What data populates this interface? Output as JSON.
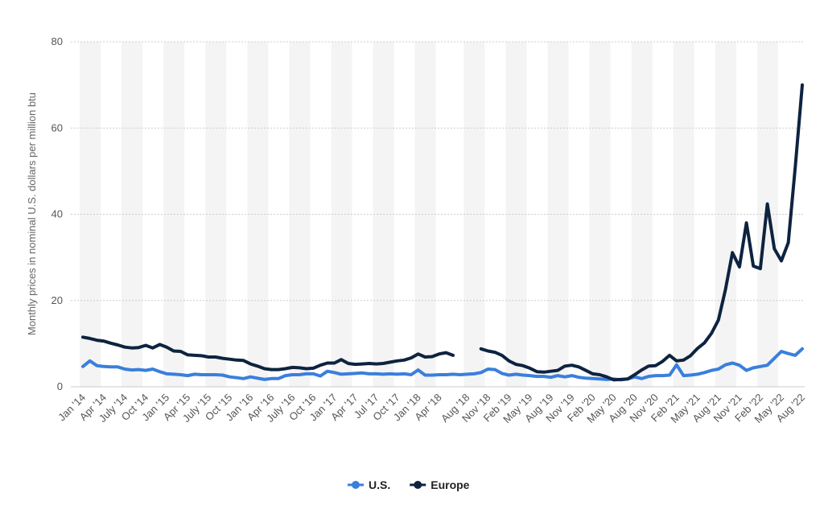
{
  "chart_data": {
    "type": "line",
    "y_label": "Monthly prices in nominal U.S. dollars per million btu",
    "categories": [
      "Jan '14",
      null,
      null,
      "Apr '14",
      null,
      null,
      "July '14",
      null,
      null,
      "Oct '14",
      null,
      null,
      "Jan '15",
      null,
      null,
      "Apr '15",
      null,
      null,
      "July '15",
      null,
      null,
      "Oct '15",
      null,
      null,
      "Jan '16",
      null,
      null,
      "Apr '16",
      null,
      null,
      "July '16",
      null,
      null,
      "Oct '16",
      null,
      null,
      "Jan '17",
      null,
      null,
      "Apr '17",
      null,
      null,
      "Jul '17",
      null,
      null,
      "Oct '17",
      null,
      null,
      "Jan '18",
      null,
      null,
      "Apr '18",
      null,
      null,
      null,
      "Aug '18",
      null,
      null,
      "Nov '18",
      null,
      null,
      "Feb '19",
      null,
      null,
      "May '19",
      null,
      null,
      "Aug '19",
      null,
      null,
      "Nov '19",
      null,
      null,
      "Feb '20",
      null,
      null,
      "May '20",
      null,
      null,
      "Aug '20",
      null,
      null,
      "Nov '20",
      null,
      null,
      "Feb '21",
      null,
      null,
      "May '21",
      null,
      null,
      "Aug '21",
      null,
      null,
      "Nov '21",
      null,
      null,
      "Feb '22",
      null,
      null,
      "May '22",
      null,
      null,
      "Aug '22"
    ],
    "series": [
      {
        "name": "U.S.",
        "color": "#3a7fdc",
        "values": [
          4.7,
          6.0,
          4.9,
          4.7,
          4.6,
          4.6,
          4.1,
          3.9,
          4.0,
          3.8,
          4.1,
          3.5,
          3.0,
          2.9,
          2.8,
          2.6,
          2.9,
          2.8,
          2.8,
          2.8,
          2.7,
          2.3,
          2.1,
          1.9,
          2.3,
          2.0,
          1.7,
          1.9,
          1.9,
          2.6,
          2.8,
          2.8,
          3.0,
          3.0,
          2.5,
          3.6,
          3.3,
          2.9,
          3.0,
          3.1,
          3.2,
          3.0,
          3.0,
          2.9,
          3.0,
          2.9,
          3.0,
          2.8,
          3.9,
          2.7,
          2.7,
          2.8,
          2.8,
          2.9,
          2.8,
          2.9,
          3.0,
          3.3,
          4.1,
          4.0,
          3.1,
          2.7,
          2.9,
          2.7,
          2.6,
          2.4,
          2.4,
          2.2,
          2.6,
          2.3,
          2.6,
          2.2,
          2.0,
          1.9,
          1.8,
          1.7,
          1.8,
          1.6,
          1.8,
          2.3,
          1.9,
          2.4,
          2.6,
          2.6,
          2.7,
          5.1,
          2.6,
          2.7,
          2.9,
          3.3,
          3.8,
          4.1,
          5.1,
          5.5,
          5.0,
          3.8,
          4.4,
          4.7,
          5.0,
          6.6,
          8.2,
          7.7,
          7.3,
          8.8
        ]
      },
      {
        "name": "Europe",
        "color": "#0d2340",
        "values": [
          11.5,
          11.2,
          10.8,
          10.6,
          10.1,
          9.7,
          9.2,
          9.0,
          9.1,
          9.6,
          9.0,
          9.8,
          9.2,
          8.3,
          8.2,
          7.4,
          7.3,
          7.2,
          6.9,
          6.9,
          6.6,
          6.4,
          6.2,
          6.1,
          5.3,
          4.8,
          4.2,
          4.0,
          4.0,
          4.2,
          4.5,
          4.4,
          4.2,
          4.3,
          5.0,
          5.5,
          5.5,
          6.3,
          5.4,
          5.2,
          5.3,
          5.4,
          5.3,
          5.4,
          5.7,
          6.0,
          6.2,
          6.7,
          7.6,
          6.9,
          7.0,
          7.6,
          7.9,
          7.3,
          null,
          null,
          null,
          8.8,
          8.3,
          8.0,
          7.3,
          6.0,
          5.2,
          4.9,
          4.3,
          3.5,
          3.4,
          3.6,
          3.8,
          4.8,
          5.0,
          4.6,
          3.8,
          3.0,
          2.8,
          2.3,
          1.6,
          1.7,
          1.8,
          2.8,
          3.9,
          4.8,
          4.9,
          5.9,
          7.3,
          6.0,
          6.2,
          7.2,
          8.9,
          10.2,
          12.4,
          15.5,
          22.5,
          31.1,
          27.8,
          38.0,
          28.0,
          27.4,
          42.4,
          32.0,
          29.2,
          33.4,
          51.0,
          70.0
        ]
      }
    ],
    "ylim": [
      0,
      80
    ],
    "yticks": [
      0,
      20,
      40,
      60,
      80
    ],
    "grid": true,
    "legend": "bottom"
  }
}
